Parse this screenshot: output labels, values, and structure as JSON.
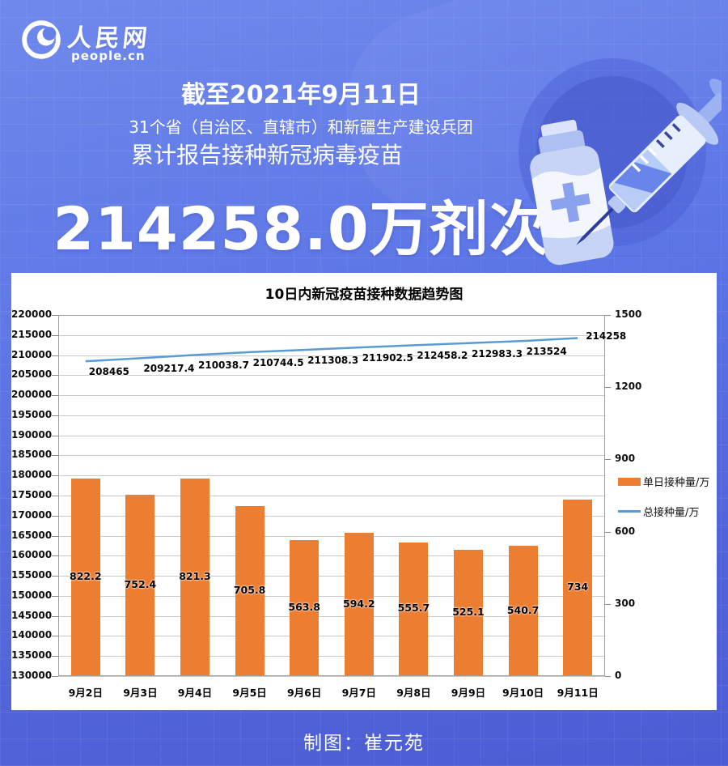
{
  "logo": {
    "brand": "人民网",
    "domain": "people.cn"
  },
  "header": {
    "date_line": "截至2021年9月11日",
    "scope_line": "31个省（自治区、直辖市）和新疆生产建设兵团",
    "subject_line": "累计报告接种新冠病毒疫苗",
    "big_number": "214258.0万剂次"
  },
  "footer": {
    "credit": "制图：崔元苑"
  },
  "colors": {
    "background_top": "#6f89ec",
    "background_bottom": "#4c5cd4",
    "bar": "#ED7D31",
    "line": "#5B9BD5",
    "panel": "#ffffff"
  },
  "icons": {
    "logo": "people-cn-globe-icon",
    "vial": "vaccine-vial-icon",
    "syringe": "syringe-icon"
  },
  "chart_data": {
    "type": "bar",
    "subtype": "combo-bar-line-dual-axis",
    "title": "10日内新冠疫苗接种数据趋势图",
    "categories": [
      "9月2日",
      "9月3日",
      "9月4日",
      "9月5日",
      "9月6日",
      "9月7日",
      "9月8日",
      "9月9日",
      "9月10日",
      "9月11日"
    ],
    "series": [
      {
        "name": "单日接种量/万",
        "type": "bar",
        "axis": "right",
        "color": "#ED7D31",
        "values": [
          822.2,
          752.4,
          821.3,
          705.8,
          563.8,
          594.2,
          555.7,
          525.1,
          540.7,
          734
        ],
        "labels": [
          "822.2",
          "752.4",
          "821.3",
          "705.8",
          "563.8",
          "594.2",
          "555.7",
          "525.1",
          "540.7",
          "734"
        ]
      },
      {
        "name": "总接种量/万",
        "type": "line",
        "axis": "left",
        "color": "#5B9BD5",
        "values": [
          208465,
          209217.4,
          210038.7,
          210744.5,
          211308.3,
          211902.5,
          212458.2,
          212983.3,
          213524,
          214258
        ],
        "labels": [
          "208465",
          "209217.4",
          "210038.7",
          "210744.5",
          "211308.3",
          "211902.5",
          "212458.2",
          "212983.3",
          "213524",
          "214258"
        ]
      }
    ],
    "left_axis": {
      "min": 130000,
      "max": 220000,
      "step": 5000,
      "ticks": [
        130000,
        135000,
        140000,
        145000,
        150000,
        155000,
        160000,
        165000,
        170000,
        175000,
        180000,
        185000,
        190000,
        195000,
        200000,
        205000,
        210000,
        215000,
        220000
      ]
    },
    "right_axis": {
      "min": 0,
      "max": 1500,
      "step": 300,
      "ticks": [
        0,
        300,
        600,
        900,
        1200,
        1500
      ]
    },
    "grid": true,
    "legend_position": "right"
  }
}
